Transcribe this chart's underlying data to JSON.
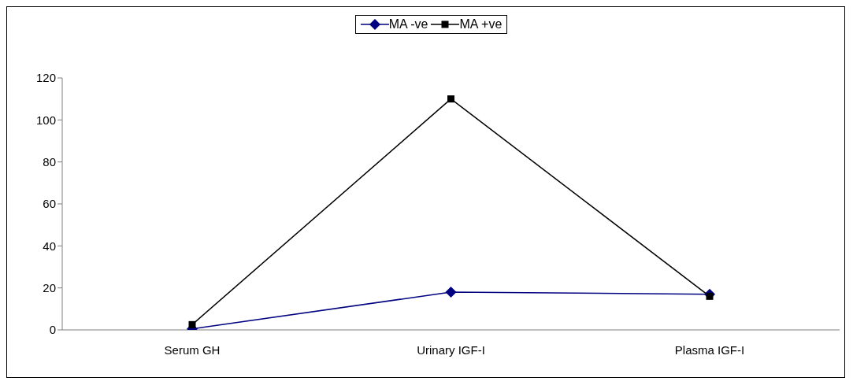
{
  "chart_data": {
    "type": "line",
    "categories": [
      "Serum GH",
      "Urinary IGF-I",
      "Plasma IGF-I"
    ],
    "series": [
      {
        "name": "MA -ve",
        "color": "#000080",
        "marker": "diamond",
        "values": [
          0.5,
          18,
          17
        ]
      },
      {
        "name": "MA +ve",
        "color": "#000000",
        "marker": "square",
        "values": [
          2.5,
          110,
          16
        ]
      }
    ],
    "ylim": [
      0,
      120
    ],
    "yticks": [
      0,
      20,
      40,
      60,
      80,
      100,
      120
    ],
    "grid": false,
    "legend": "top"
  }
}
